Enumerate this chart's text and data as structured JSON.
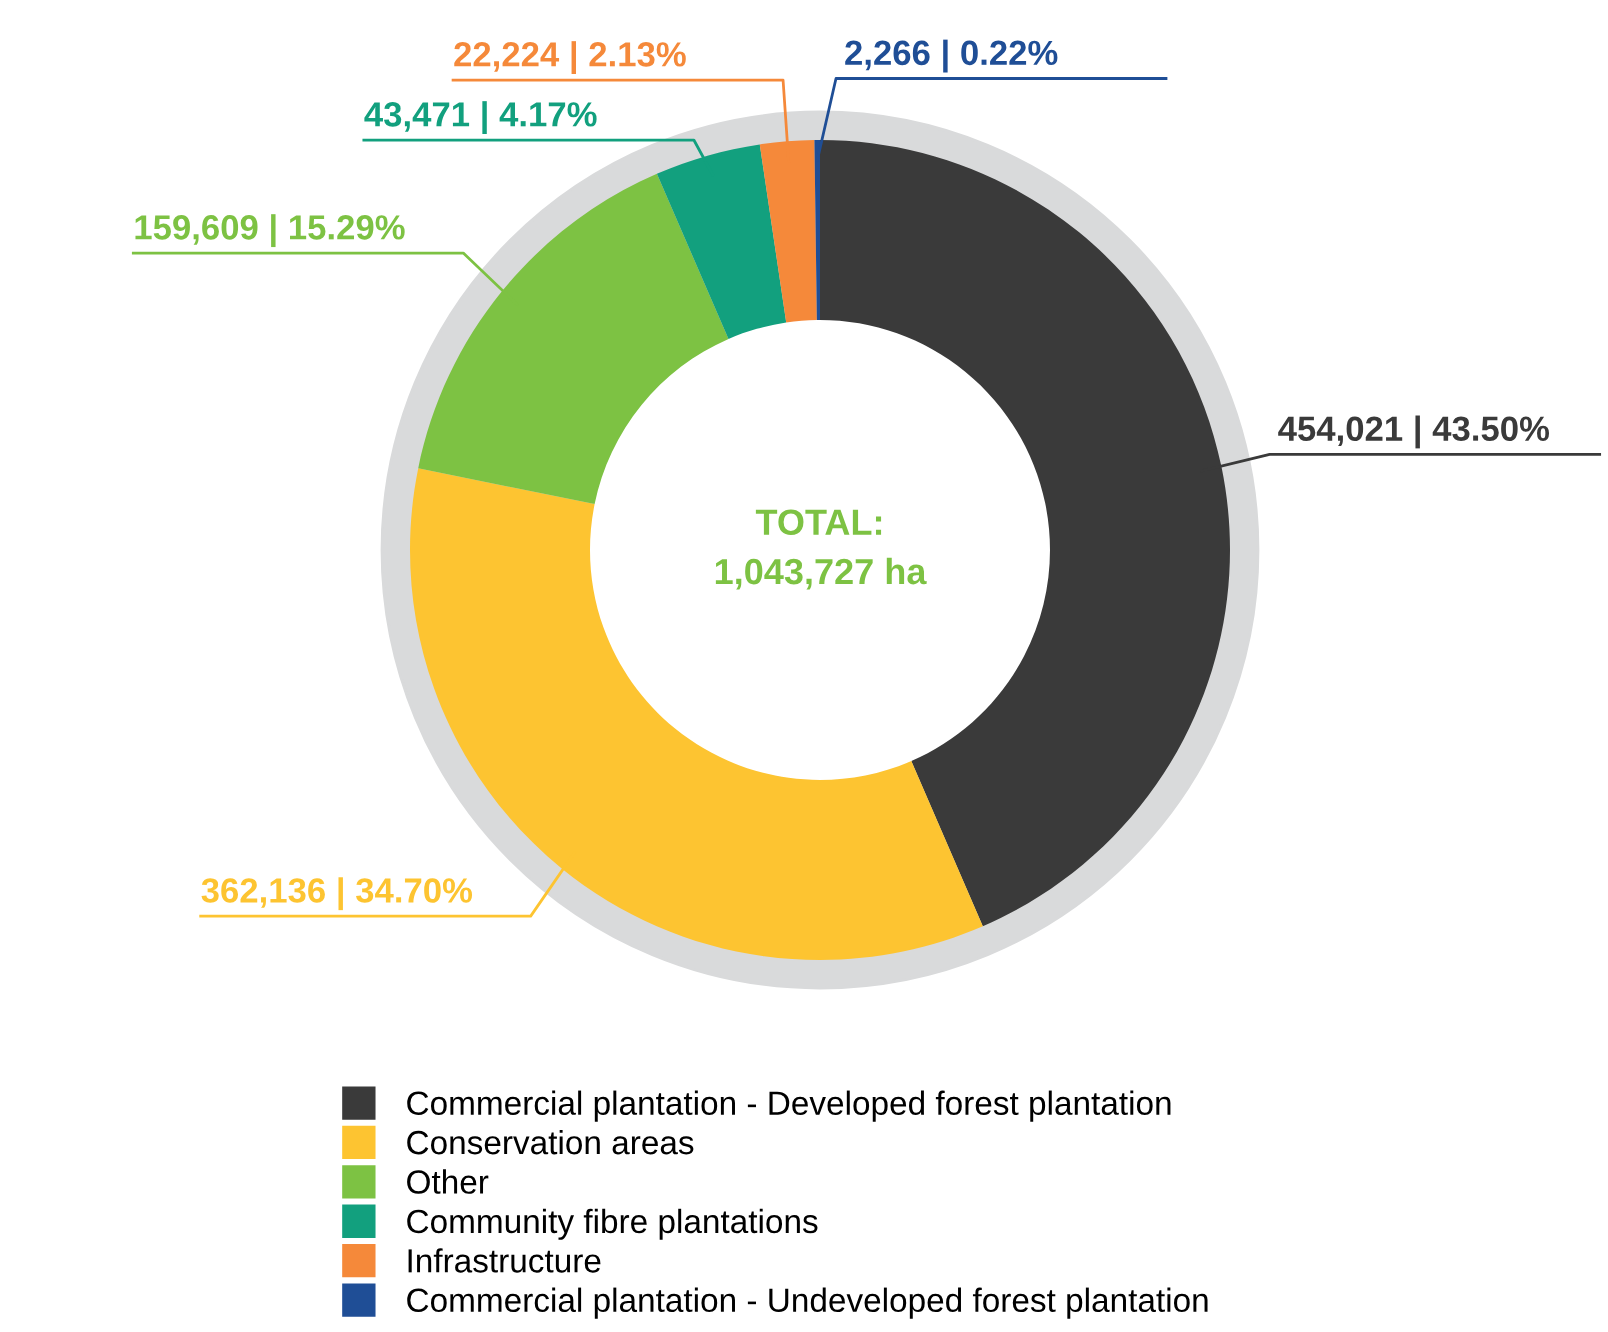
{
  "chart_data": {
    "type": "donut",
    "categories": [
      "Commercial plantation - Developed forest plantation",
      "Conservation areas",
      "Other",
      "Community fibre plantations",
      "Infrastructure",
      "Commercial plantation - Undeveloped forest plantation"
    ],
    "values": [
      454021,
      362136,
      159609,
      43471,
      22224,
      2266
    ],
    "colors": [
      "#3a3a3a",
      "#fdc431",
      "#7dc243",
      "#12a07e",
      "#f5893a",
      "#1f4e96"
    ],
    "value_labels": [
      "454,021 | 43.50%",
      "362,136 | 34.70%",
      "159,609 | 15.29%",
      "43,471 | 4.17%",
      "22,224 | 2.13%",
      "2,266 | 0.22%"
    ],
    "annotations": [
      "TOTAL:\n1,043,727 ha"
    ],
    "legend": "bottom"
  }
}
